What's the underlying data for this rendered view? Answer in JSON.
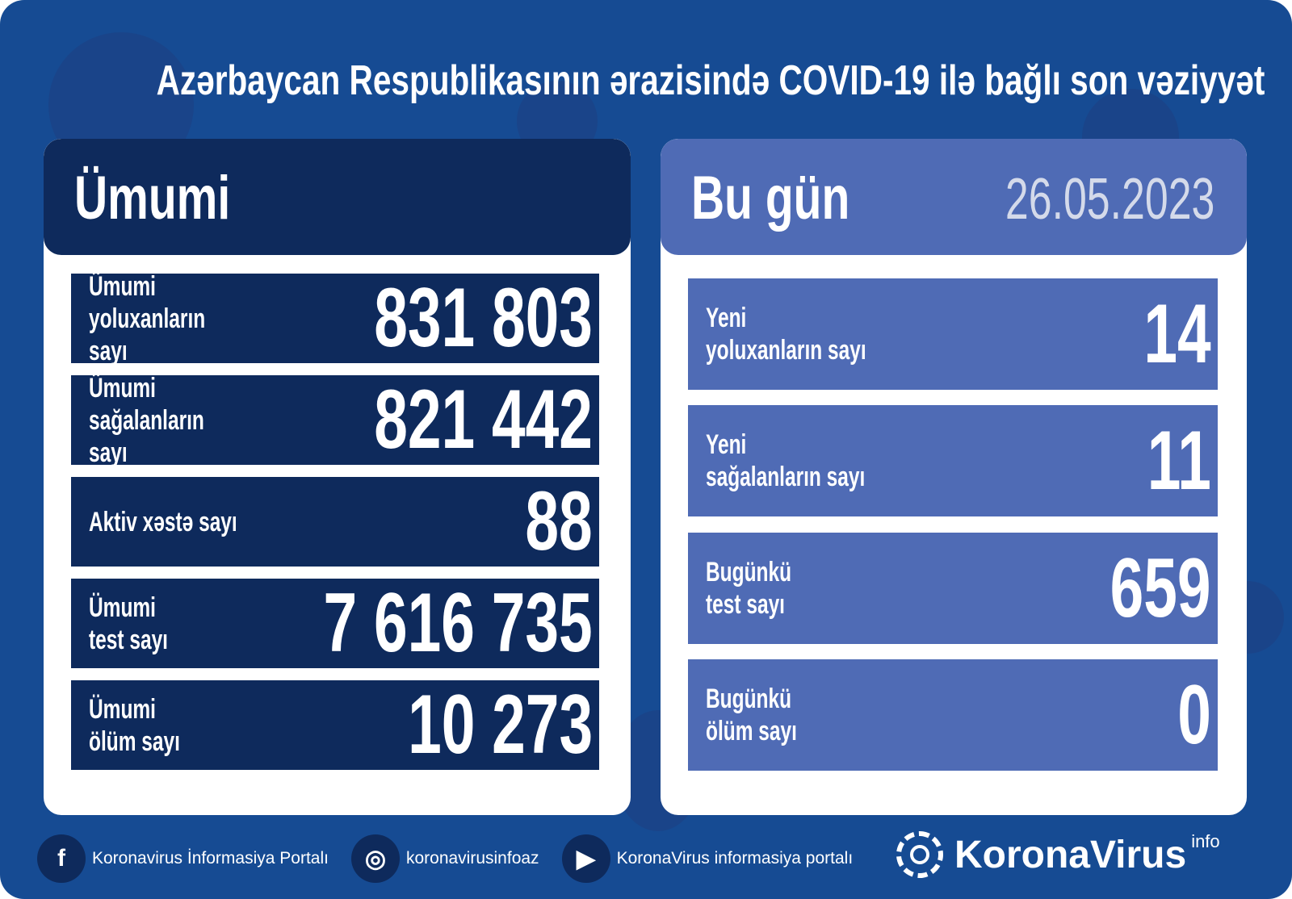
{
  "title": "Azərbaycan Respublikasının ərazisində COVID-19 ilə bağlı son vəziyyət",
  "total": {
    "heading": "Ümumi",
    "rows": [
      {
        "label": "Ümumi\nyoluxanların sayı",
        "value": "831 803"
      },
      {
        "label": "Ümumi\nsağalanların sayı",
        "value": "821 442"
      },
      {
        "label": "Aktiv xəstə sayı",
        "value": "88"
      },
      {
        "label": "Ümumi\ntest sayı",
        "value": "7 616 735"
      },
      {
        "label": "Ümumi\nölüm sayı",
        "value": "10 273"
      }
    ]
  },
  "today": {
    "heading": "Bu gün",
    "date": "26.05.2023",
    "rows": [
      {
        "label": "Yeni\nyoluxanların sayı",
        "value": "14"
      },
      {
        "label": "Yeni\nsağalanların sayı",
        "value": "11"
      },
      {
        "label": "Bugünkü\ntest sayı",
        "value": "659"
      },
      {
        "label": "Bugünkü\nölüm sayı",
        "value": "0"
      }
    ]
  },
  "footer": {
    "facebook": "Koronavirus İnformasiya Portalı",
    "instagram": "koronavirusinfoaz",
    "youtube": "KoronaVirus informasiya portalı",
    "brand": "KoronaVirus",
    "brand_sup": "info"
  },
  "colors": {
    "background": "#164b93",
    "navy": "#0e2a5c",
    "today_blue": "#4f6bb5"
  }
}
